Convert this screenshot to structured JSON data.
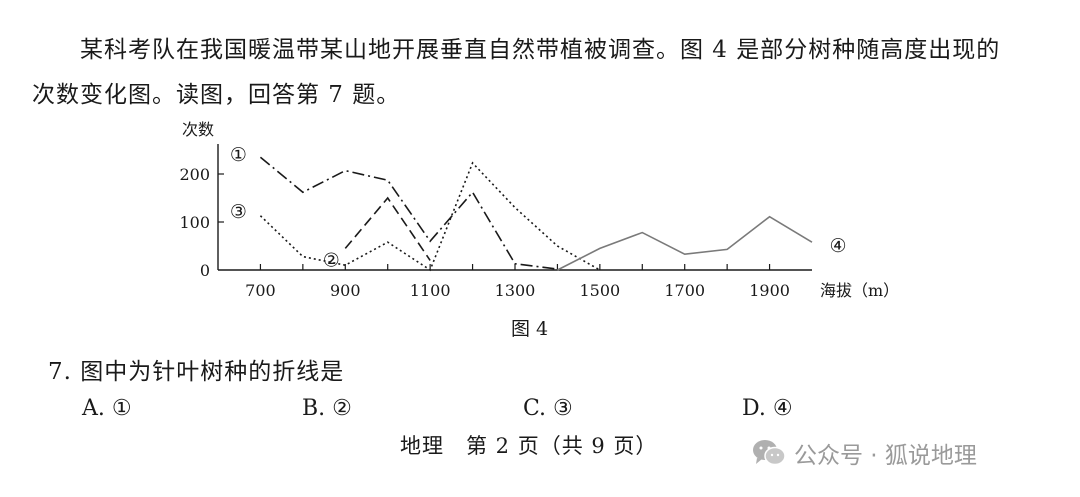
{
  "intro": {
    "line1": "某科考队在我国暖温带某山地开展垂直自然带植被调查。图 4 是部分树种随高度出现的",
    "line2": "次数变化图。读图，回答第 7 题。"
  },
  "figure_caption": "图 4",
  "question": {
    "stem": "7. 图中为针叶树种的折线是",
    "options": [
      "A. ①",
      "B. ②",
      "C. ③",
      "D. ④"
    ]
  },
  "footer": "地理　第 2 页（共 9 页）",
  "watermark": {
    "text": "公众号 · 狐说地理",
    "icon": "wechat-icon"
  },
  "chart_data": {
    "type": "line",
    "ylabel": "次数",
    "xlabel": "海拔",
    "xunit": "m",
    "xlim": [
      600,
      2000
    ],
    "ylim": [
      0,
      250
    ],
    "xticks": [
      700,
      900,
      1100,
      1300,
      1500,
      1700,
      1900
    ],
    "yticks": [
      0,
      100,
      200
    ],
    "grid": false,
    "series": [
      {
        "name": "①",
        "style": "dash-dot",
        "color": "#1a1a1a",
        "x": [
          700,
          800,
          900,
          1000,
          1100,
          1200,
          1300,
          1400
        ],
        "y": [
          235,
          162,
          207,
          187,
          60,
          162,
          13,
          2
        ]
      },
      {
        "name": "②",
        "style": "dashed",
        "color": "#1a1a1a",
        "x": [
          900,
          1000,
          1100
        ],
        "y": [
          45,
          150,
          20
        ]
      },
      {
        "name": "③",
        "style": "dotted",
        "color": "#1a1a1a",
        "x": [
          700,
          800,
          900,
          1000,
          1100,
          1200,
          1300,
          1400,
          1500
        ],
        "y": [
          113,
          28,
          10,
          58,
          0,
          223,
          130,
          50,
          0
        ]
      },
      {
        "name": "④",
        "style": "solid",
        "color": "#7a7a7a",
        "x": [
          1400,
          1500,
          1600,
          1700,
          1800,
          1900,
          2000
        ],
        "y": [
          0,
          45,
          78,
          33,
          43,
          111,
          58
        ]
      }
    ]
  }
}
